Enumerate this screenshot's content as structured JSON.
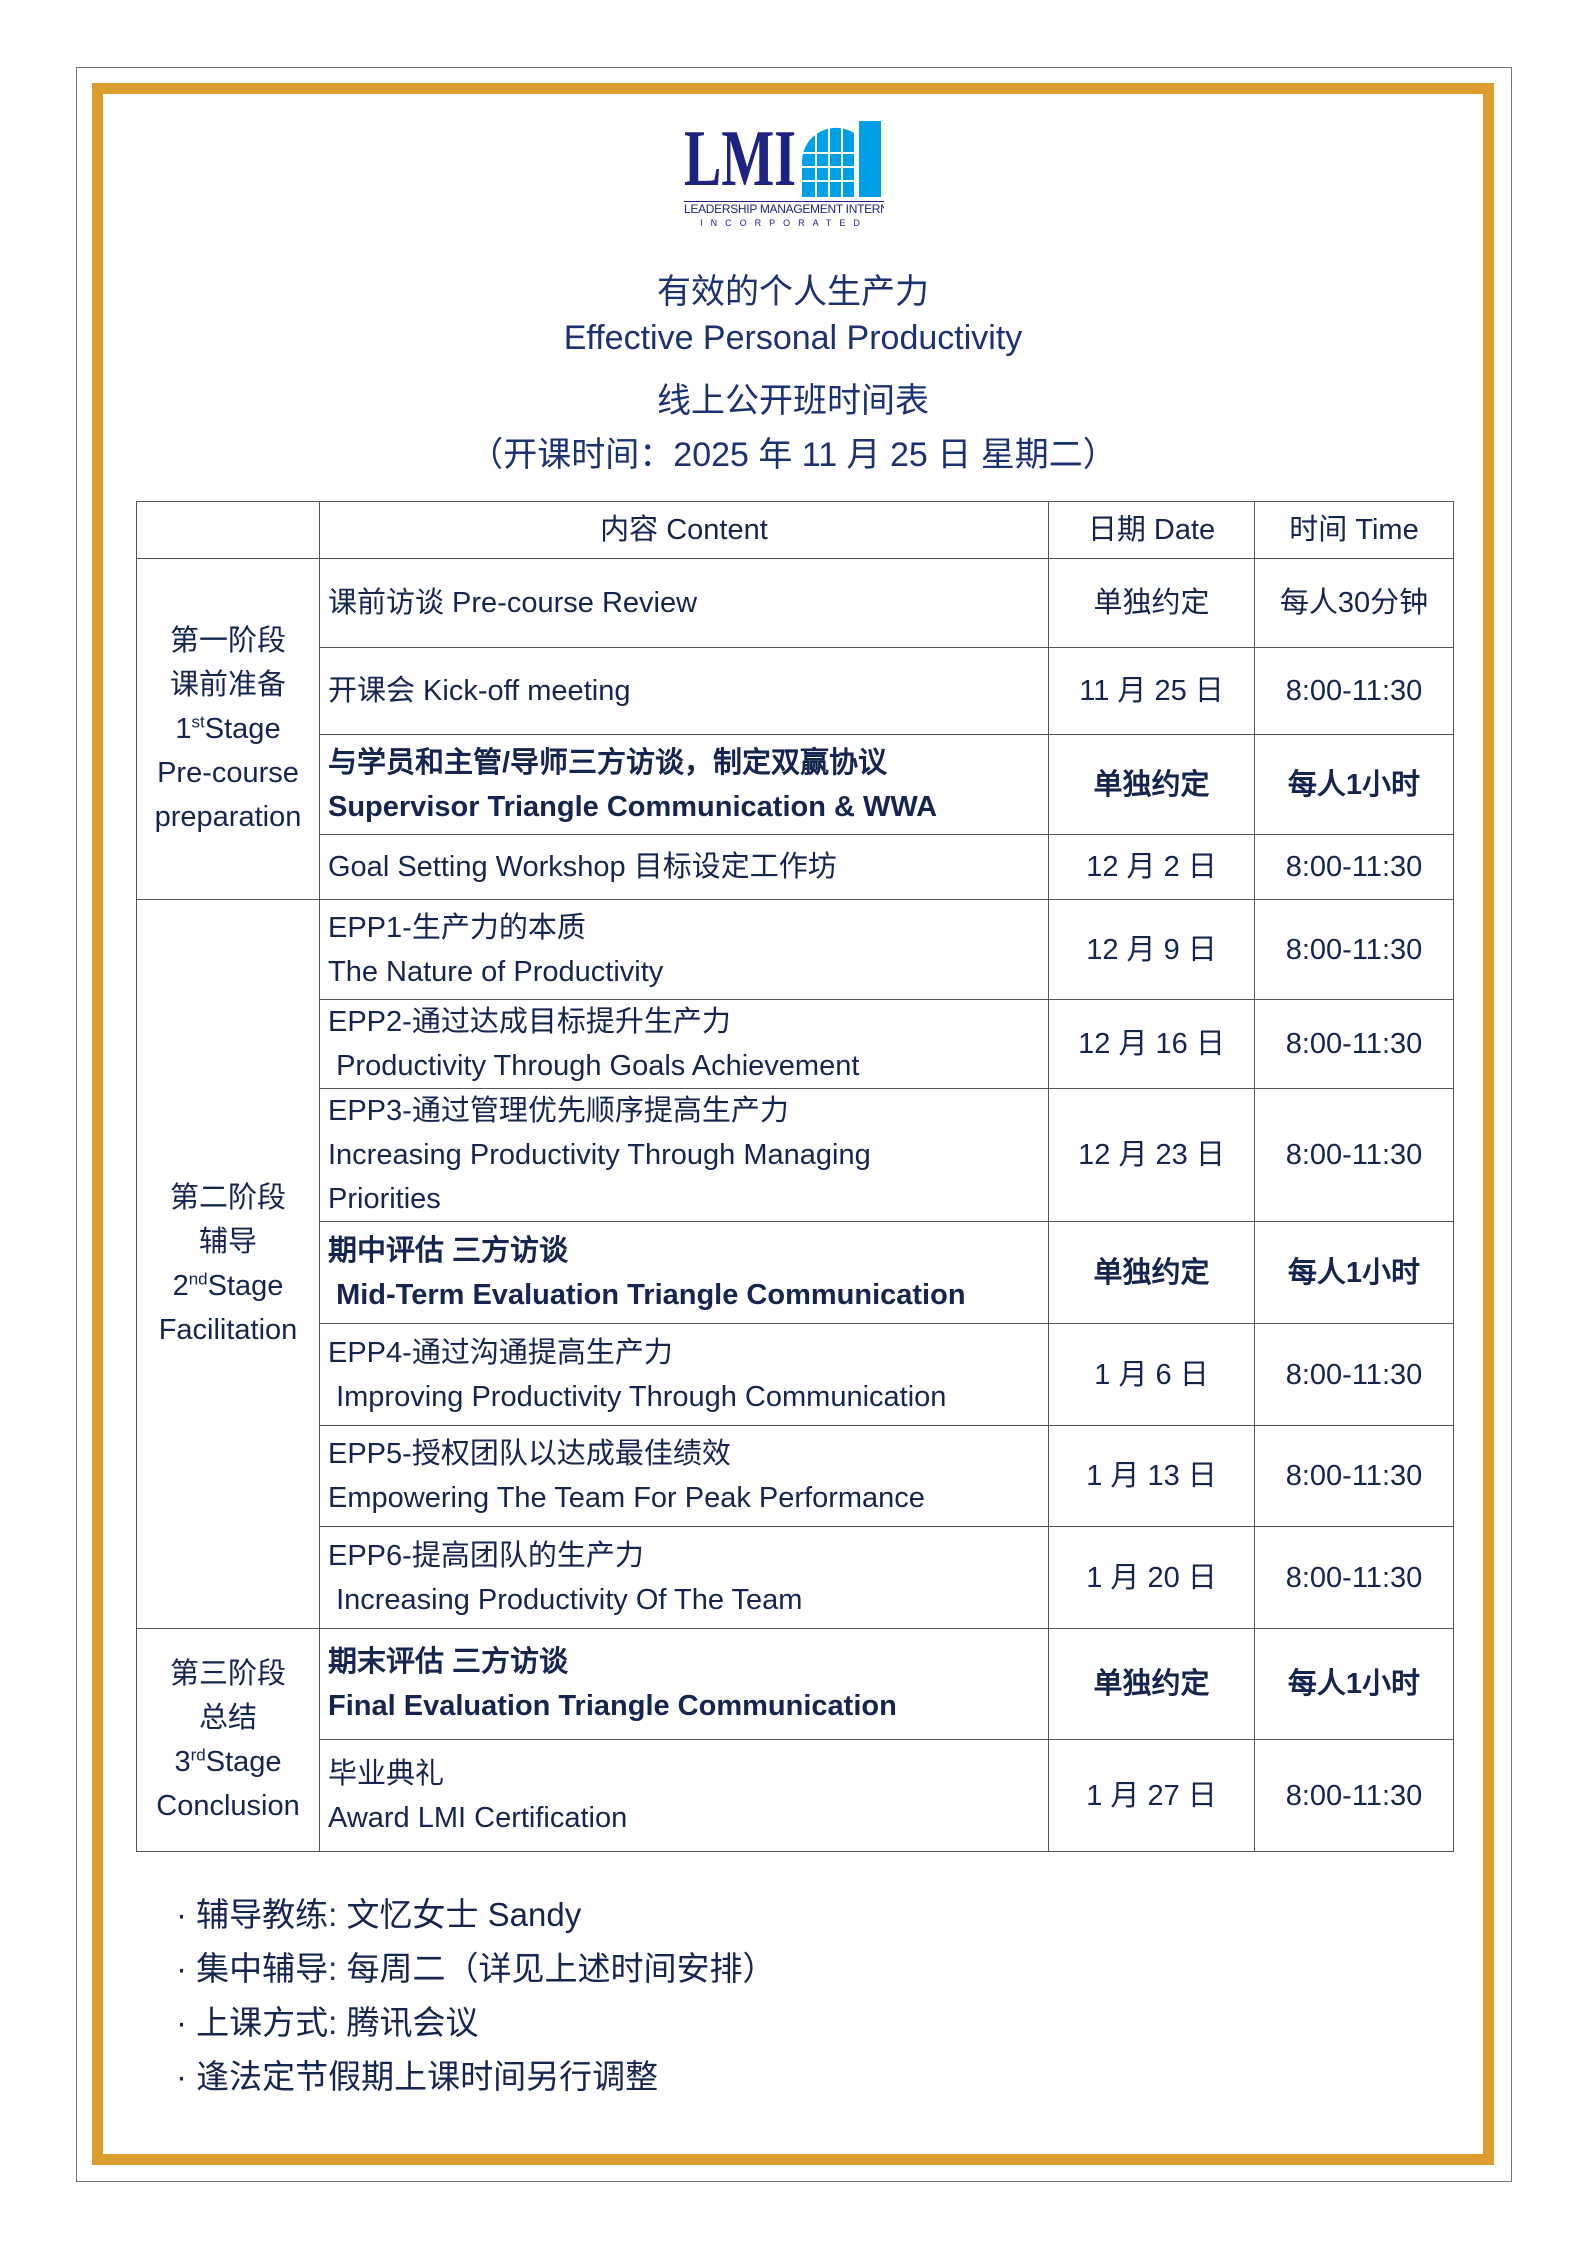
{
  "logo": {
    "text": "LMI",
    "line1": "LEADERSHIP MANAGEMENT INTERNATIONAL",
    "line2": "INCORPORATED",
    "colors": {
      "navy": "#1e2280",
      "blue": "#00a0e6"
    }
  },
  "header": {
    "title_cn": "有效的个人生产力",
    "title_en": "Effective Personal Productivity",
    "subtitle": "线上公开班时间表",
    "start_date": "（开课时间：2025 年 11 月 25 日 星期二）"
  },
  "table": {
    "columns": [
      "",
      "内容 Content",
      "日期 Date",
      "时间 Time"
    ],
    "stages": [
      {
        "cn1": "第一阶段",
        "cn2": "课前准备",
        "num": "1",
        "sup": "st",
        "stage": "Stage",
        "en1": "Pre-course",
        "en2": "preparation"
      },
      {
        "cn1": "第二阶段",
        "cn2": "辅导",
        "num": "2",
        "sup": "nd",
        "stage": "Stage",
        "en1": "Facilitation"
      },
      {
        "cn1": "第三阶段",
        "cn2": "总结",
        "num": "3",
        "sup": "rd",
        "stage": "Stage",
        "en1": "Conclusion"
      }
    ],
    "rows": [
      {
        "line1": "课前访谈 Pre-course Review",
        "date": "单独约定",
        "time": "每人30分钟"
      },
      {
        "line1": "开课会 Kick-off meeting",
        "date": "11 月 25 日",
        "time": "8:00-11:30"
      },
      {
        "line1": "与学员和主管/导师三方访谈，制定双赢协议",
        "line2": "Supervisor Triangle Communication & WWA",
        "date": "单独约定",
        "time": "每人1小时",
        "bold": true
      },
      {
        "line1": "Goal Setting Workshop 目标设定工作坊",
        "date": "12 月 2 日",
        "time": "8:00-11:30"
      },
      {
        "line1": "EPP1-生产力的本质",
        "line2": "The Nature of Productivity",
        "date": "12 月 9 日",
        "time": "8:00-11:30"
      },
      {
        "line1": "EPP2-通过达成目标提升生产力",
        "line2": " Productivity Through Goals Achievement",
        "date": "12 月 16 日",
        "time": "8:00-11:30"
      },
      {
        "line1": "EPP3-通过管理优先顺序提高生产力",
        "line2": "Increasing Productivity Through Managing",
        "line3": "Priorities",
        "date": "12 月 23 日",
        "time": "8:00-11:30"
      },
      {
        "line1": "期中评估 三方访谈",
        "line2": " Mid-Term Evaluation Triangle Communication",
        "date": "单独约定",
        "time": "每人1小时",
        "bold": true
      },
      {
        "line1": "EPP4-通过沟通提高生产力",
        "line2": " Improving Productivity Through Communication",
        "date": "1 月 6 日",
        "time": "8:00-11:30"
      },
      {
        "line1": "EPP5-授权团队以达成最佳绩效",
        "line2": "Empowering The Team For Peak Performance",
        "date": "1 月 13 日",
        "time": "8:00-11:30"
      },
      {
        "line1": "EPP6-提高团队的生产力",
        "line2": " Increasing Productivity Of The Team",
        "date": "1 月 20 日",
        "time": "8:00-11:30"
      },
      {
        "line1": "期末评估 三方访谈",
        "line2": "Final Evaluation Triangle Communication",
        "date": "单独约定",
        "time": "每人1小时",
        "bold": true
      },
      {
        "line1": "毕业典礼",
        "line2": "Award LMI Certification",
        "date": "1 月 27 日",
        "time": "8:00-11:30"
      }
    ]
  },
  "notes": [
    "· 辅导教练: 文忆女士 Sandy",
    "· 集中辅导: 每周二（详见上述时间安排）",
    "· 上课方式: 腾讯会议",
    "· 逢法定节假期上课时间另行调整"
  ],
  "colors": {
    "border_gold": "#dc9d2f",
    "text": "#14254f",
    "title": "#1b3272"
  }
}
